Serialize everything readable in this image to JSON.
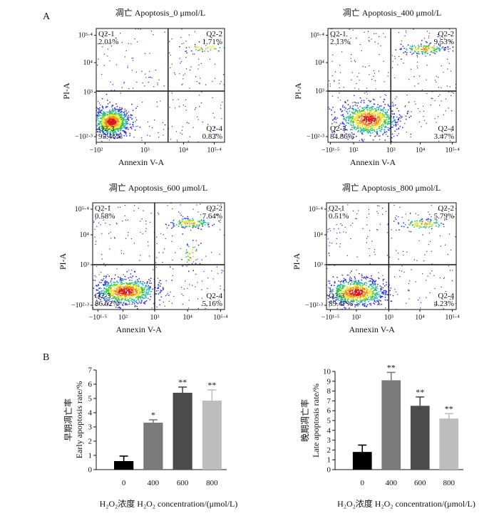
{
  "panel_labels": [
    "A",
    "B"
  ],
  "chart_data": [
    {
      "type": "scatter",
      "title": "凋亡  Apoptosis_0 μmol/L",
      "xlabel": "Annexin V-A",
      "ylabel": "PI-A",
      "xticks": [
        "−10²",
        "10³",
        "10⁴",
        "10⁵·⁴"
      ],
      "yticks": [
        "10⁵·⁴",
        "10⁴",
        "10³",
        "−10²·³"
      ],
      "quadrants": [
        {
          "name": "Q2-1",
          "value": "2.01%"
        },
        {
          "name": "Q2-2",
          "value": "1.71%"
        },
        {
          "name": "Q2-3",
          "value": "95.46%"
        },
        {
          "name": "Q2-4",
          "value": "0.83%"
        }
      ]
    },
    {
      "type": "scatter",
      "title": "凋亡  Apoptosis_400 μmol/L",
      "xlabel": "Annexin V-A",
      "ylabel": "PI-A",
      "xticks": [
        "−10¹·⁵",
        "10²",
        "10³",
        "10⁴",
        "10⁵·⁴"
      ],
      "yticks": [
        "10⁵·⁴",
        "10⁴",
        "10³",
        "−10²·³"
      ],
      "quadrants": [
        {
          "name": "Q2-1",
          "value": "2.13%"
        },
        {
          "name": "Q2-2",
          "value": "9.53%"
        },
        {
          "name": "Q2-3",
          "value": "84.86%"
        },
        {
          "name": "Q2-4",
          "value": "3.47%"
        }
      ]
    },
    {
      "type": "scatter",
      "title": "凋亡  Apoptosis_600 μmol/L",
      "xlabel": "Annexin V-A",
      "ylabel": "PI-A",
      "xticks": [
        "−10¹·⁵",
        "10²",
        "10³",
        "10⁴",
        "10⁵·⁴"
      ],
      "yticks": [
        "10⁵·⁴",
        "10⁴",
        "10³",
        "−10²·³"
      ],
      "quadrants": [
        {
          "name": "Q2-1",
          "value": "0.58%"
        },
        {
          "name": "Q2-2",
          "value": "7.64%"
        },
        {
          "name": "Q2-3",
          "value": "86.62%"
        },
        {
          "name": "Q2-4",
          "value": "5.16%"
        }
      ]
    },
    {
      "type": "scatter",
      "title": "凋亡  Apoptosis_800 μmol/L",
      "xlabel": "Annexin V-A",
      "ylabel": "PI-A",
      "xticks": [
        "−10¹·⁵",
        "10²",
        "10³",
        "10⁴",
        "10⁵·⁴"
      ],
      "yticks": [
        "10⁵·⁴",
        "10⁴",
        "10³",
        "−10²·³"
      ],
      "quadrants": [
        {
          "name": "Q2-1",
          "value": "0.51%"
        },
        {
          "name": "Q2-2",
          "value": "5.79%"
        },
        {
          "name": "Q2-3",
          "value": "89.47%"
        },
        {
          "name": "Q2-4",
          "value": "4.23%"
        }
      ]
    },
    {
      "type": "bar",
      "ylabel_cn": "早期凋亡率",
      "ylabel_en": "Early apoptosis rate/%",
      "xlabel": "H₂O₂浓度 H₂O₂ concentration/(μmol/L)",
      "categories": [
        "0",
        "400",
        "600",
        "800"
      ],
      "values": [
        0.6,
        3.3,
        5.4,
        4.85
      ],
      "errors": [
        0.35,
        0.2,
        0.4,
        0.75
      ],
      "significance": [
        "",
        "*",
        "**",
        "**"
      ],
      "colors": [
        "#000000",
        "#7a7a7a",
        "#4b4b4b",
        "#bdbdbd"
      ],
      "ylim": [
        0,
        7
      ],
      "yticks": [
        0,
        1,
        2,
        3,
        4,
        5,
        6,
        7
      ]
    },
    {
      "type": "bar",
      "ylabel_cn": "晚期凋亡率",
      "ylabel_en": "Late apoptosis rate/%",
      "xlabel": "H₂O₂浓度 H₂O₂ concentration/(μmol/L)",
      "categories": [
        "0",
        "400",
        "600",
        "800"
      ],
      "values": [
        1.8,
        9.1,
        6.5,
        5.2
      ],
      "errors": [
        0.7,
        0.8,
        0.9,
        0.5
      ],
      "significance": [
        "",
        "**",
        "**",
        "**"
      ],
      "colors": [
        "#000000",
        "#7a7a7a",
        "#4b4b4b",
        "#bdbdbd"
      ],
      "ylim": [
        0,
        10
      ],
      "yticks": [
        0,
        1,
        2,
        3,
        4,
        5,
        6,
        7,
        8,
        9,
        10
      ]
    }
  ]
}
